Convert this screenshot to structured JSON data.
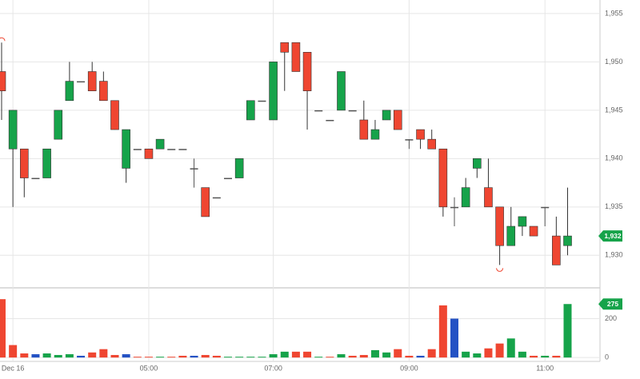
{
  "chart_data": {
    "type": "candlestick",
    "categories": [
      null,
      "Dec 16",
      null,
      null,
      null,
      null,
      null,
      null,
      null,
      null,
      null,
      null,
      null,
      "05:00",
      null,
      null,
      null,
      null,
      null,
      null,
      null,
      null,
      null,
      null,
      "07:00",
      null,
      null,
      null,
      null,
      null,
      null,
      null,
      null,
      null,
      null,
      null,
      "09:00",
      null,
      null,
      null,
      null,
      null,
      null,
      null,
      null,
      null,
      null,
      null,
      "11:00",
      null,
      null
    ],
    "open": [
      1949,
      1941,
      1941,
      1938,
      1938,
      1942,
      1946,
      1948,
      1949,
      1948,
      1946,
      1939,
      1941,
      1941,
      1941,
      1941,
      1941,
      1939,
      1937,
      1936,
      1938,
      1938,
      1944,
      1946,
      1944,
      1952,
      1952,
      1951,
      1945,
      1944,
      1945,
      1945,
      1944,
      1942,
      1944,
      1945,
      1942,
      1943,
      1942,
      1941,
      1935,
      1935,
      1939,
      1937,
      1935,
      1931,
      1933,
      1933,
      1935,
      1932,
      1931
    ],
    "high": [
      1952,
      1945,
      1941,
      1938,
      1941,
      1945,
      1950,
      1948,
      1950,
      1949,
      1946,
      1943,
      1941,
      1941,
      1942,
      1941,
      1941,
      1940,
      1937,
      1936,
      1938,
      1940,
      1946,
      1946,
      1950,
      1952,
      1952,
      1951,
      1945,
      1944,
      1949,
      1945,
      1946,
      1944,
      1945,
      1945,
      1942,
      1943,
      1943,
      1941,
      1936,
      1938,
      1940,
      1940,
      1935,
      1935,
      1934,
      1933,
      1935,
      1934,
      1937
    ],
    "low": [
      1944,
      1935,
      1936,
      1938,
      1938,
      1942,
      1946,
      1948,
      1947,
      1946,
      1943,
      1937.5,
      1941,
      1940,
      1941,
      1941,
      1941,
      1937,
      1934,
      1936,
      1938,
      1938,
      1944,
      1946,
      1944,
      1947,
      1949,
      1943,
      1945,
      1944,
      1945,
      1945,
      1942,
      1942,
      1944,
      1943,
      1941,
      1941,
      1941,
      1934,
      1933,
      1935,
      1938,
      1935,
      1929,
      1931,
      1932,
      1932,
      1933,
      1929,
      1930
    ],
    "close": [
      1947,
      1945,
      1938,
      1938,
      1941,
      1945,
      1948,
      1948,
      1947,
      1946,
      1943,
      1943,
      1941,
      1940,
      1942,
      1941,
      1941,
      1939,
      1934,
      1936,
      1938,
      1940,
      1946,
      1946,
      1950,
      1951,
      1949,
      1947,
      1945,
      1944,
      1949,
      1945,
      1942,
      1943,
      1945,
      1943,
      1942,
      1942,
      1941,
      1935,
      1935,
      1937,
      1940,
      1935,
      1931,
      1933,
      1934,
      1932,
      1935,
      1929,
      1932
    ],
    "volume": [
      300,
      64,
      21,
      17,
      21,
      13,
      17,
      9,
      26,
      43,
      13,
      17,
      4,
      4,
      4,
      4,
      9,
      9,
      13,
      9,
      4,
      4,
      4,
      4,
      17,
      30,
      30,
      30,
      4,
      4,
      17,
      9,
      13,
      38,
      26,
      43,
      9,
      9,
      43,
      268,
      200,
      30,
      21,
      47,
      72,
      98,
      30,
      9,
      9,
      9,
      275
    ],
    "volume_colors": [
      "down",
      "down",
      "down",
      "neutral",
      "up",
      "up",
      "up",
      "neutral",
      "down",
      "down",
      "down",
      "neutral",
      "down",
      "down",
      "up",
      "down",
      "down",
      "neutral",
      "down",
      "down",
      "up",
      "up",
      "up",
      "up",
      "up",
      "up",
      "down",
      "down",
      "up",
      "down",
      "up",
      "down",
      "down",
      "up",
      "up",
      "down",
      "down",
      "neutral",
      "down",
      "down",
      "neutral",
      "up",
      "up",
      "down",
      "down",
      "up",
      "up",
      "down",
      "up",
      "down",
      "up"
    ],
    "colors": {
      "up": "#16a34a",
      "down": "#ef4631",
      "flat": "#555555",
      "neutral": "#2452c4"
    },
    "ylim": [
      1926.8,
      1956.4
    ],
    "yticks": [
      {
        "value": 1930,
        "label": "1,930"
      },
      {
        "value": 1935,
        "label": "1,935"
      },
      {
        "value": 1940,
        "label": "1,940"
      },
      {
        "value": 1945,
        "label": "1,945"
      },
      {
        "value": 1950,
        "label": "1,950"
      },
      {
        "value": 1955,
        "label": "1,955"
      }
    ],
    "volume_ylim": [
      -20,
      350
    ],
    "volume_yticks": [
      0,
      200
    ],
    "last_price": {
      "value": 1932,
      "label": "1,932"
    },
    "last_volume": 275,
    "grid": true
  }
}
